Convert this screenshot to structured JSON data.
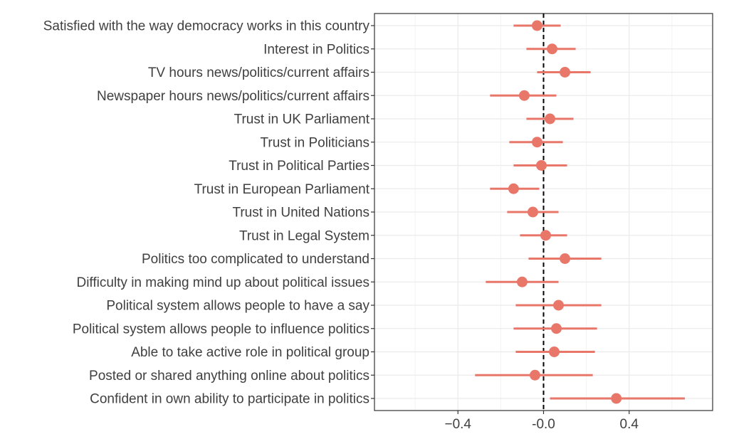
{
  "chart_data": {
    "type": "dot-errorbar",
    "title": "",
    "xlabel": "",
    "ylabel": "",
    "xlim": [
      -0.79,
      0.79
    ],
    "x_ticks": [
      {
        "value": -0.4,
        "label": "−0.4"
      },
      {
        "value": 0.0,
        "label": "-0.0"
      },
      {
        "value": 0.4,
        "label": "0.4"
      }
    ],
    "reference_line": 0,
    "grid": true,
    "point_color": "#E8776A",
    "categories": [
      "Satisfied with the way democracy works in this country",
      "Interest in Politics",
      "TV hours news/politics/current affairs",
      "Newspaper hours news/politics/current affairs",
      "Trust in UK Parliament",
      "Trust in Politicians",
      "Trust in Political Parties",
      "Trust in European Parliament",
      "Trust in United Nations",
      "Trust in Legal System",
      "Politics too complicated to understand",
      "Difficulty in making mind up about political issues",
      "Political system allows people to have a say",
      "Political system allows people to influence politics",
      "Able to take active role in political group",
      "Posted or shared anything online about politics",
      "Confident in own ability to participate in politics"
    ],
    "estimates": [
      -0.03,
      0.04,
      0.1,
      -0.09,
      0.03,
      -0.03,
      -0.01,
      -0.14,
      -0.05,
      0.01,
      0.1,
      -0.1,
      0.07,
      0.06,
      0.05,
      -0.04,
      0.34
    ],
    "lower": [
      -0.14,
      -0.08,
      -0.03,
      -0.25,
      -0.08,
      -0.16,
      -0.14,
      -0.25,
      -0.17,
      -0.11,
      -0.07,
      -0.27,
      -0.13,
      -0.14,
      -0.13,
      -0.32,
      0.03
    ],
    "upper": [
      0.08,
      0.15,
      0.22,
      0.06,
      0.14,
      0.09,
      0.11,
      -0.02,
      0.07,
      0.11,
      0.27,
      0.07,
      0.27,
      0.25,
      0.24,
      0.23,
      0.66
    ]
  }
}
